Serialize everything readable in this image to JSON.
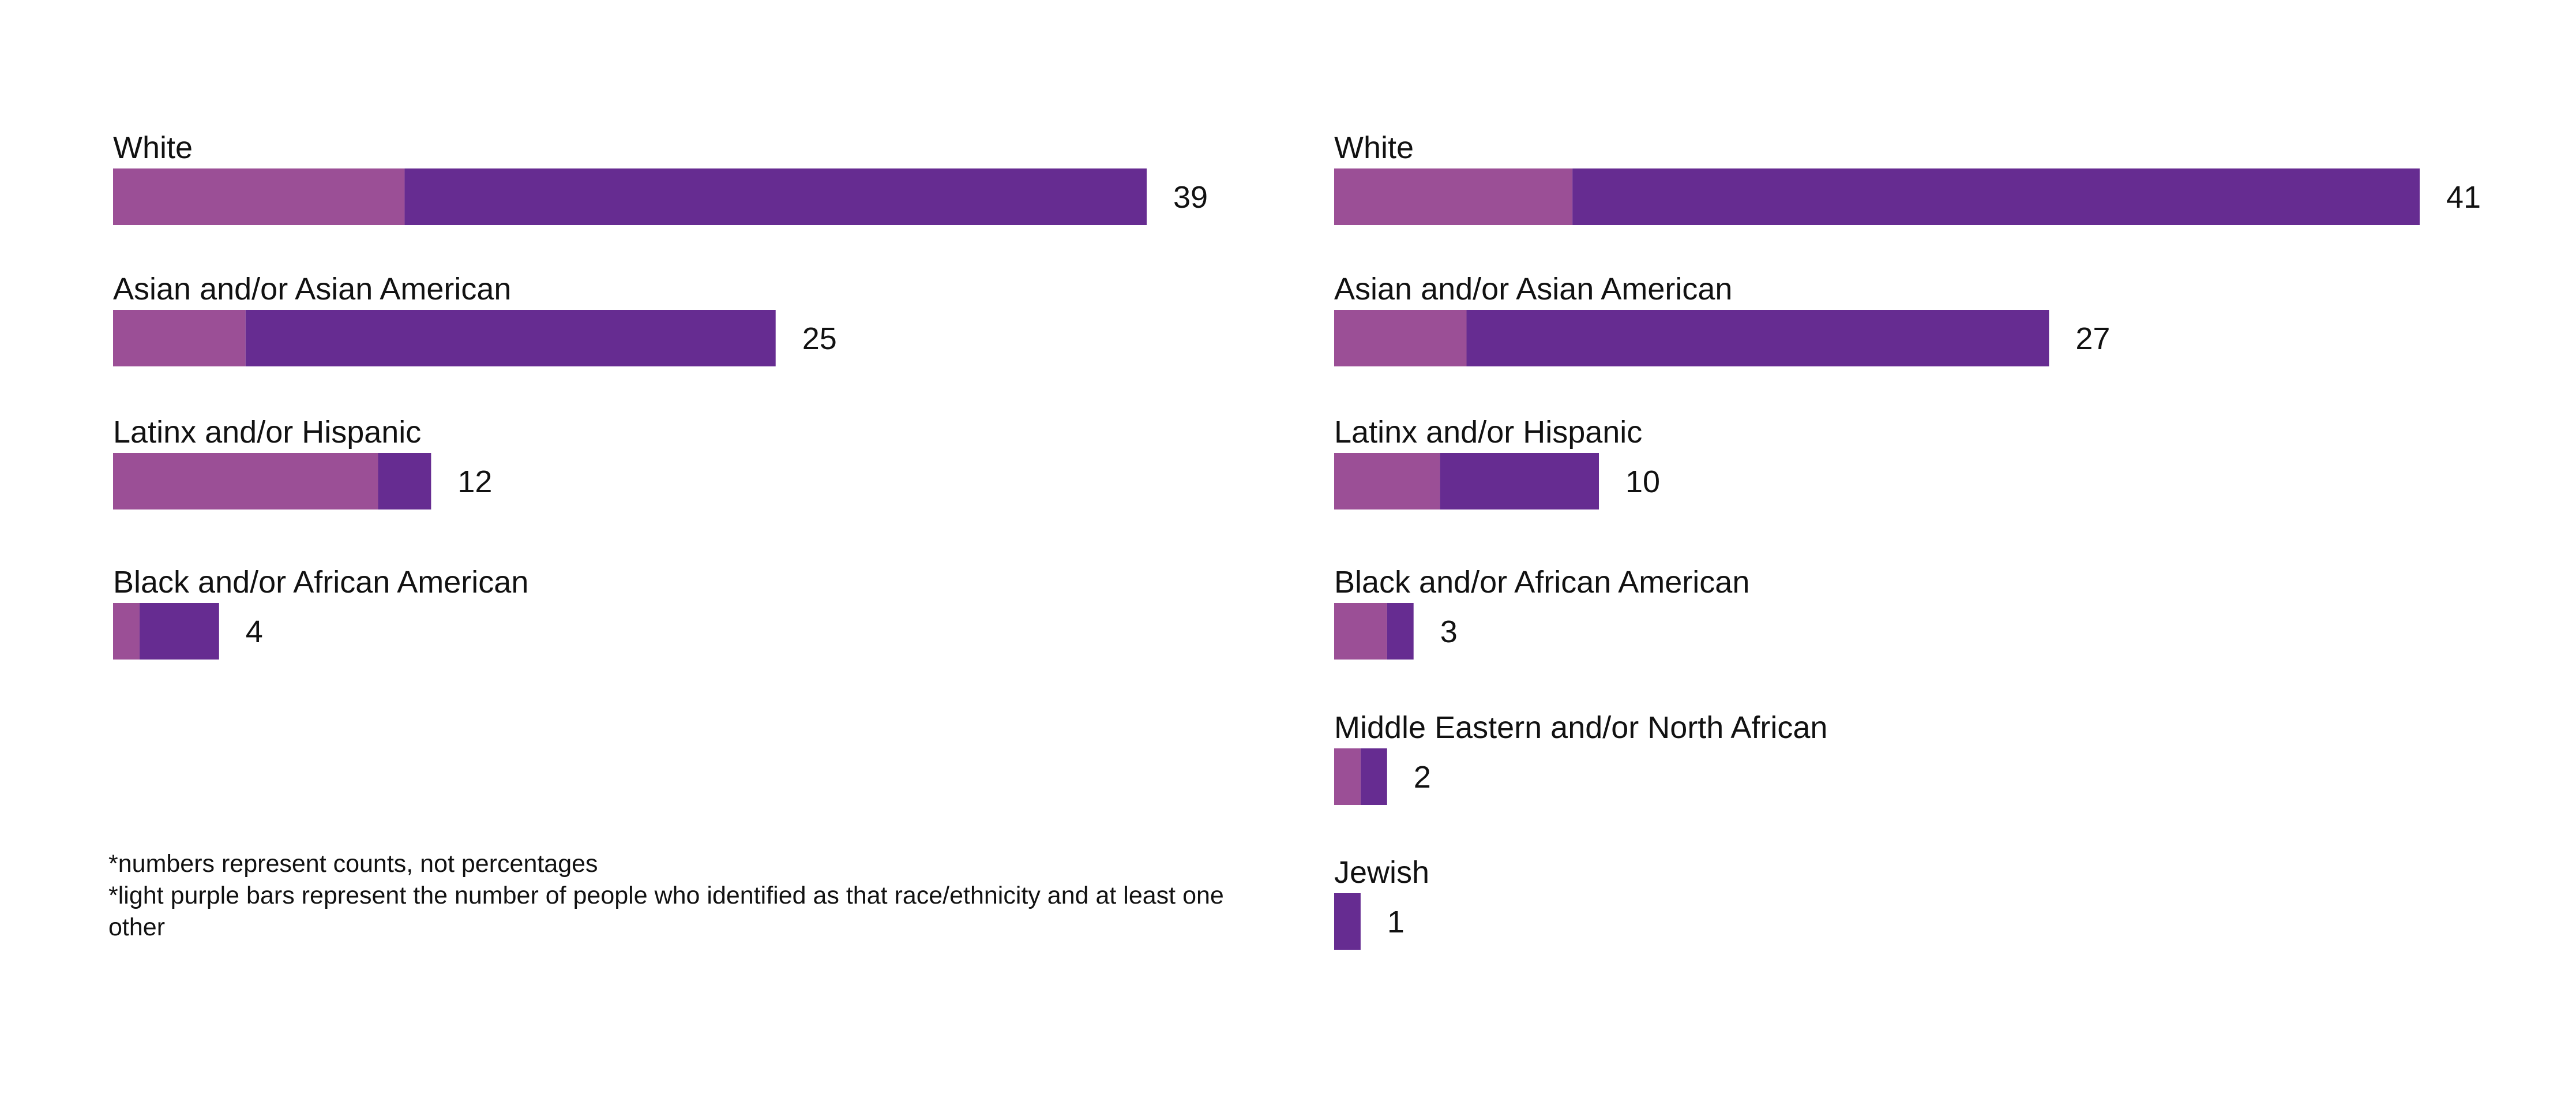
{
  "colors": {
    "multi": "#9b4f96",
    "single": "#662c91",
    "text": "#111111"
  },
  "chart_data": [
    {
      "type": "bar",
      "orientation": "horizontal",
      "stacked": true,
      "categories": [
        "White",
        "Asian and/or Asian American",
        "Latinx and/or Hispanic",
        "Black and/or African American"
      ],
      "series": [
        {
          "values": [
            11,
            5,
            10,
            1
          ]
        },
        {
          "values": [
            28,
            20,
            2,
            3
          ]
        }
      ],
      "totals": [
        39,
        25,
        12,
        4
      ],
      "xlim": [
        0,
        39
      ],
      "grid": false
    },
    {
      "type": "bar",
      "orientation": "horizontal",
      "stacked": true,
      "categories": [
        "White",
        "Asian and/or Asian American",
        "Latinx and/or Hispanic",
        "Black and/or African American",
        "Middle Eastern and/or North African",
        "Jewish"
      ],
      "series": [
        {
          "values": [
            9,
            5,
            4,
            2,
            1,
            0
          ]
        },
        {
          "values": [
            32,
            22,
            6,
            1,
            1,
            1
          ]
        }
      ],
      "totals": [
        41,
        27,
        10,
        3,
        2,
        1
      ],
      "xlim": [
        0,
        41
      ],
      "grid": false
    }
  ],
  "notes": [
    "*numbers represent counts, not percentages",
    "*light purple bars represent the number of people who identified as that race/ethnicity and at least one other"
  ]
}
